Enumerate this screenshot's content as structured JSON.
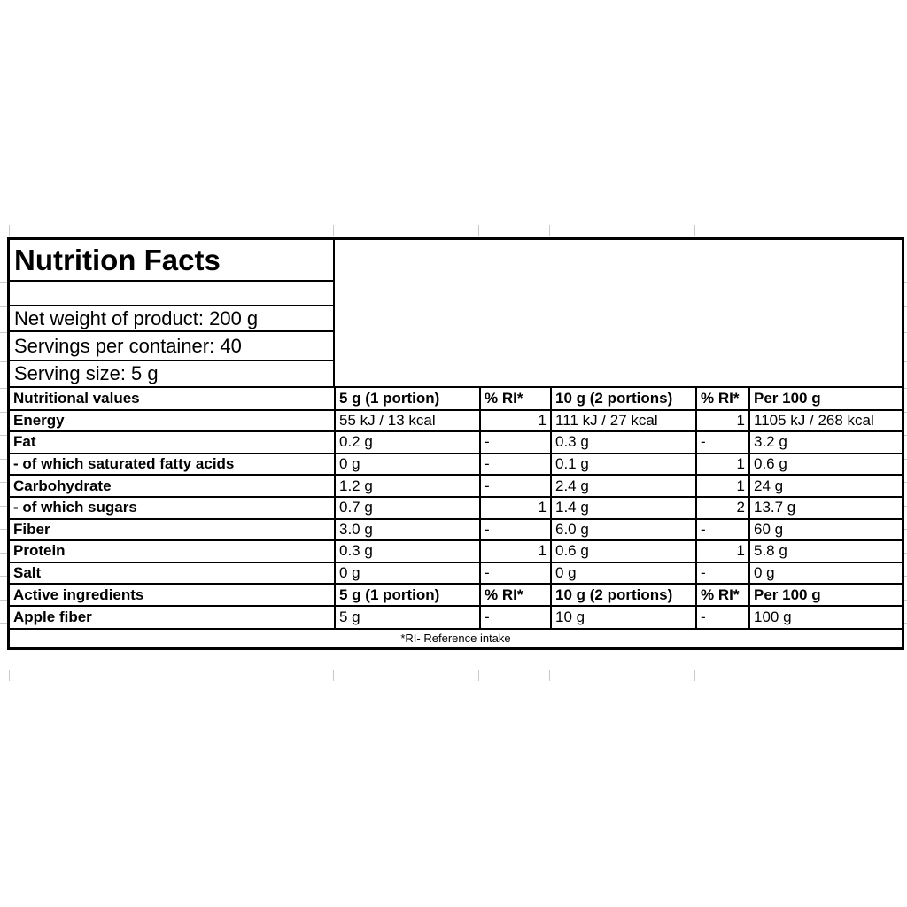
{
  "label": {
    "title": "Nutrition Facts",
    "info_rows": [
      "Net weight of product: 200 g",
      "Servings per container: 40",
      "Serving size: 5 g"
    ],
    "rows": [
      {
        "type": "header",
        "cells": [
          "Nutritional values",
          "5 g (1 portion)",
          "% RI*",
          "10 g (2 portions)",
          "% RI*",
          "Per 100 g"
        ]
      },
      {
        "type": "data",
        "cells": [
          "Energy",
          "55 kJ / 13 kcal",
          "1",
          "111 kJ / 27 kcal",
          "1",
          "1105 kJ / 268 kcal"
        ]
      },
      {
        "type": "data",
        "cells": [
          "Fat",
          "0.2 g",
          "-",
          "0.3 g",
          "-",
          "3.2 g"
        ]
      },
      {
        "type": "data",
        "cells": [
          "- of which saturated fatty acids",
          "0 g",
          "-",
          "0.1 g",
          "1",
          "0.6 g"
        ]
      },
      {
        "type": "data",
        "cells": [
          "Carbohydrate",
          "1.2 g",
          "-",
          "2.4 g",
          "1",
          "24 g"
        ]
      },
      {
        "type": "data",
        "cells": [
          "- of which sugars",
          "0.7 g",
          "1",
          "1.4 g",
          "2",
          "13.7 g"
        ]
      },
      {
        "type": "data",
        "cells": [
          "Fiber",
          "3.0 g",
          "-",
          "6.0 g",
          "-",
          "60 g"
        ]
      },
      {
        "type": "data",
        "cells": [
          "Protein",
          "0.3 g",
          "1",
          "0.6 g",
          "1",
          "5.8 g"
        ]
      },
      {
        "type": "data",
        "cells": [
          "Salt",
          "0 g",
          "-",
          "0 g",
          "-",
          "0 g"
        ]
      },
      {
        "type": "header",
        "cells": [
          "Active ingredients",
          "5 g (1 portion)",
          "% RI*",
          "10 g (2 portions)",
          "% RI*",
          "Per 100 g"
        ]
      },
      {
        "type": "data",
        "cells": [
          "Apple fiber",
          "5 g",
          "-",
          "10 g",
          "-",
          "100 g"
        ]
      }
    ],
    "footnote": "*RI- Reference intake",
    "colors": {
      "border": "#000000",
      "text": "#000000",
      "background": "#ffffff",
      "gridline": "#c9c9c9"
    }
  }
}
